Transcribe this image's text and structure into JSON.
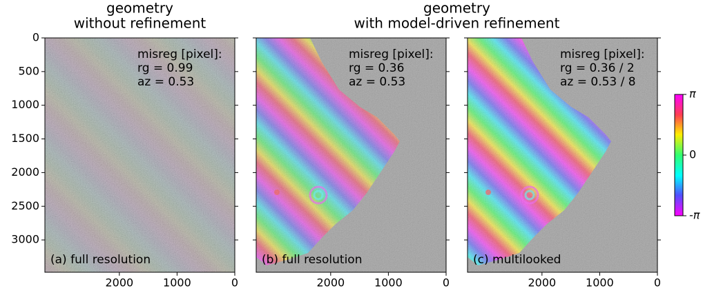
{
  "chart_data": {
    "type": "image",
    "titles": [
      {
        "lines": [
          "geometry",
          "without refinement"
        ],
        "panels": [
          0,
          0
        ]
      },
      {
        "lines": [
          "geometry",
          "with model-driven refinement"
        ],
        "panels": [
          1,
          2
        ]
      }
    ],
    "xlim": [
      3290,
      0
    ],
    "xticks": [
      2000,
      1000,
      0
    ],
    "ylim": [
      3480,
      0
    ],
    "yticks": [
      0,
      500,
      1000,
      1500,
      2000,
      2500,
      3000
    ],
    "panels": [
      {
        "label": "(a) full resolution",
        "annotation": [
          "misreg [pixel]:",
          "rg = 0.99",
          "az = 0.53"
        ]
      },
      {
        "label": "(b) full resolution",
        "annotation": [
          "misreg [pixel]:",
          "rg = 0.36",
          "az = 0.53"
        ]
      },
      {
        "label": "(c) multilooked",
        "annotation": [
          "misreg [pixel]:",
          "rg = 0.36 / 2",
          "az = 0.53 / 8"
        ]
      }
    ],
    "colorbar": {
      "lim": [
        -3.14159,
        3.14159
      ],
      "ticks": [
        {
          "value": 3.14159,
          "label": "π"
        },
        0,
        {
          "value": -3.14159,
          "label": "-π"
        }
      ]
    }
  }
}
